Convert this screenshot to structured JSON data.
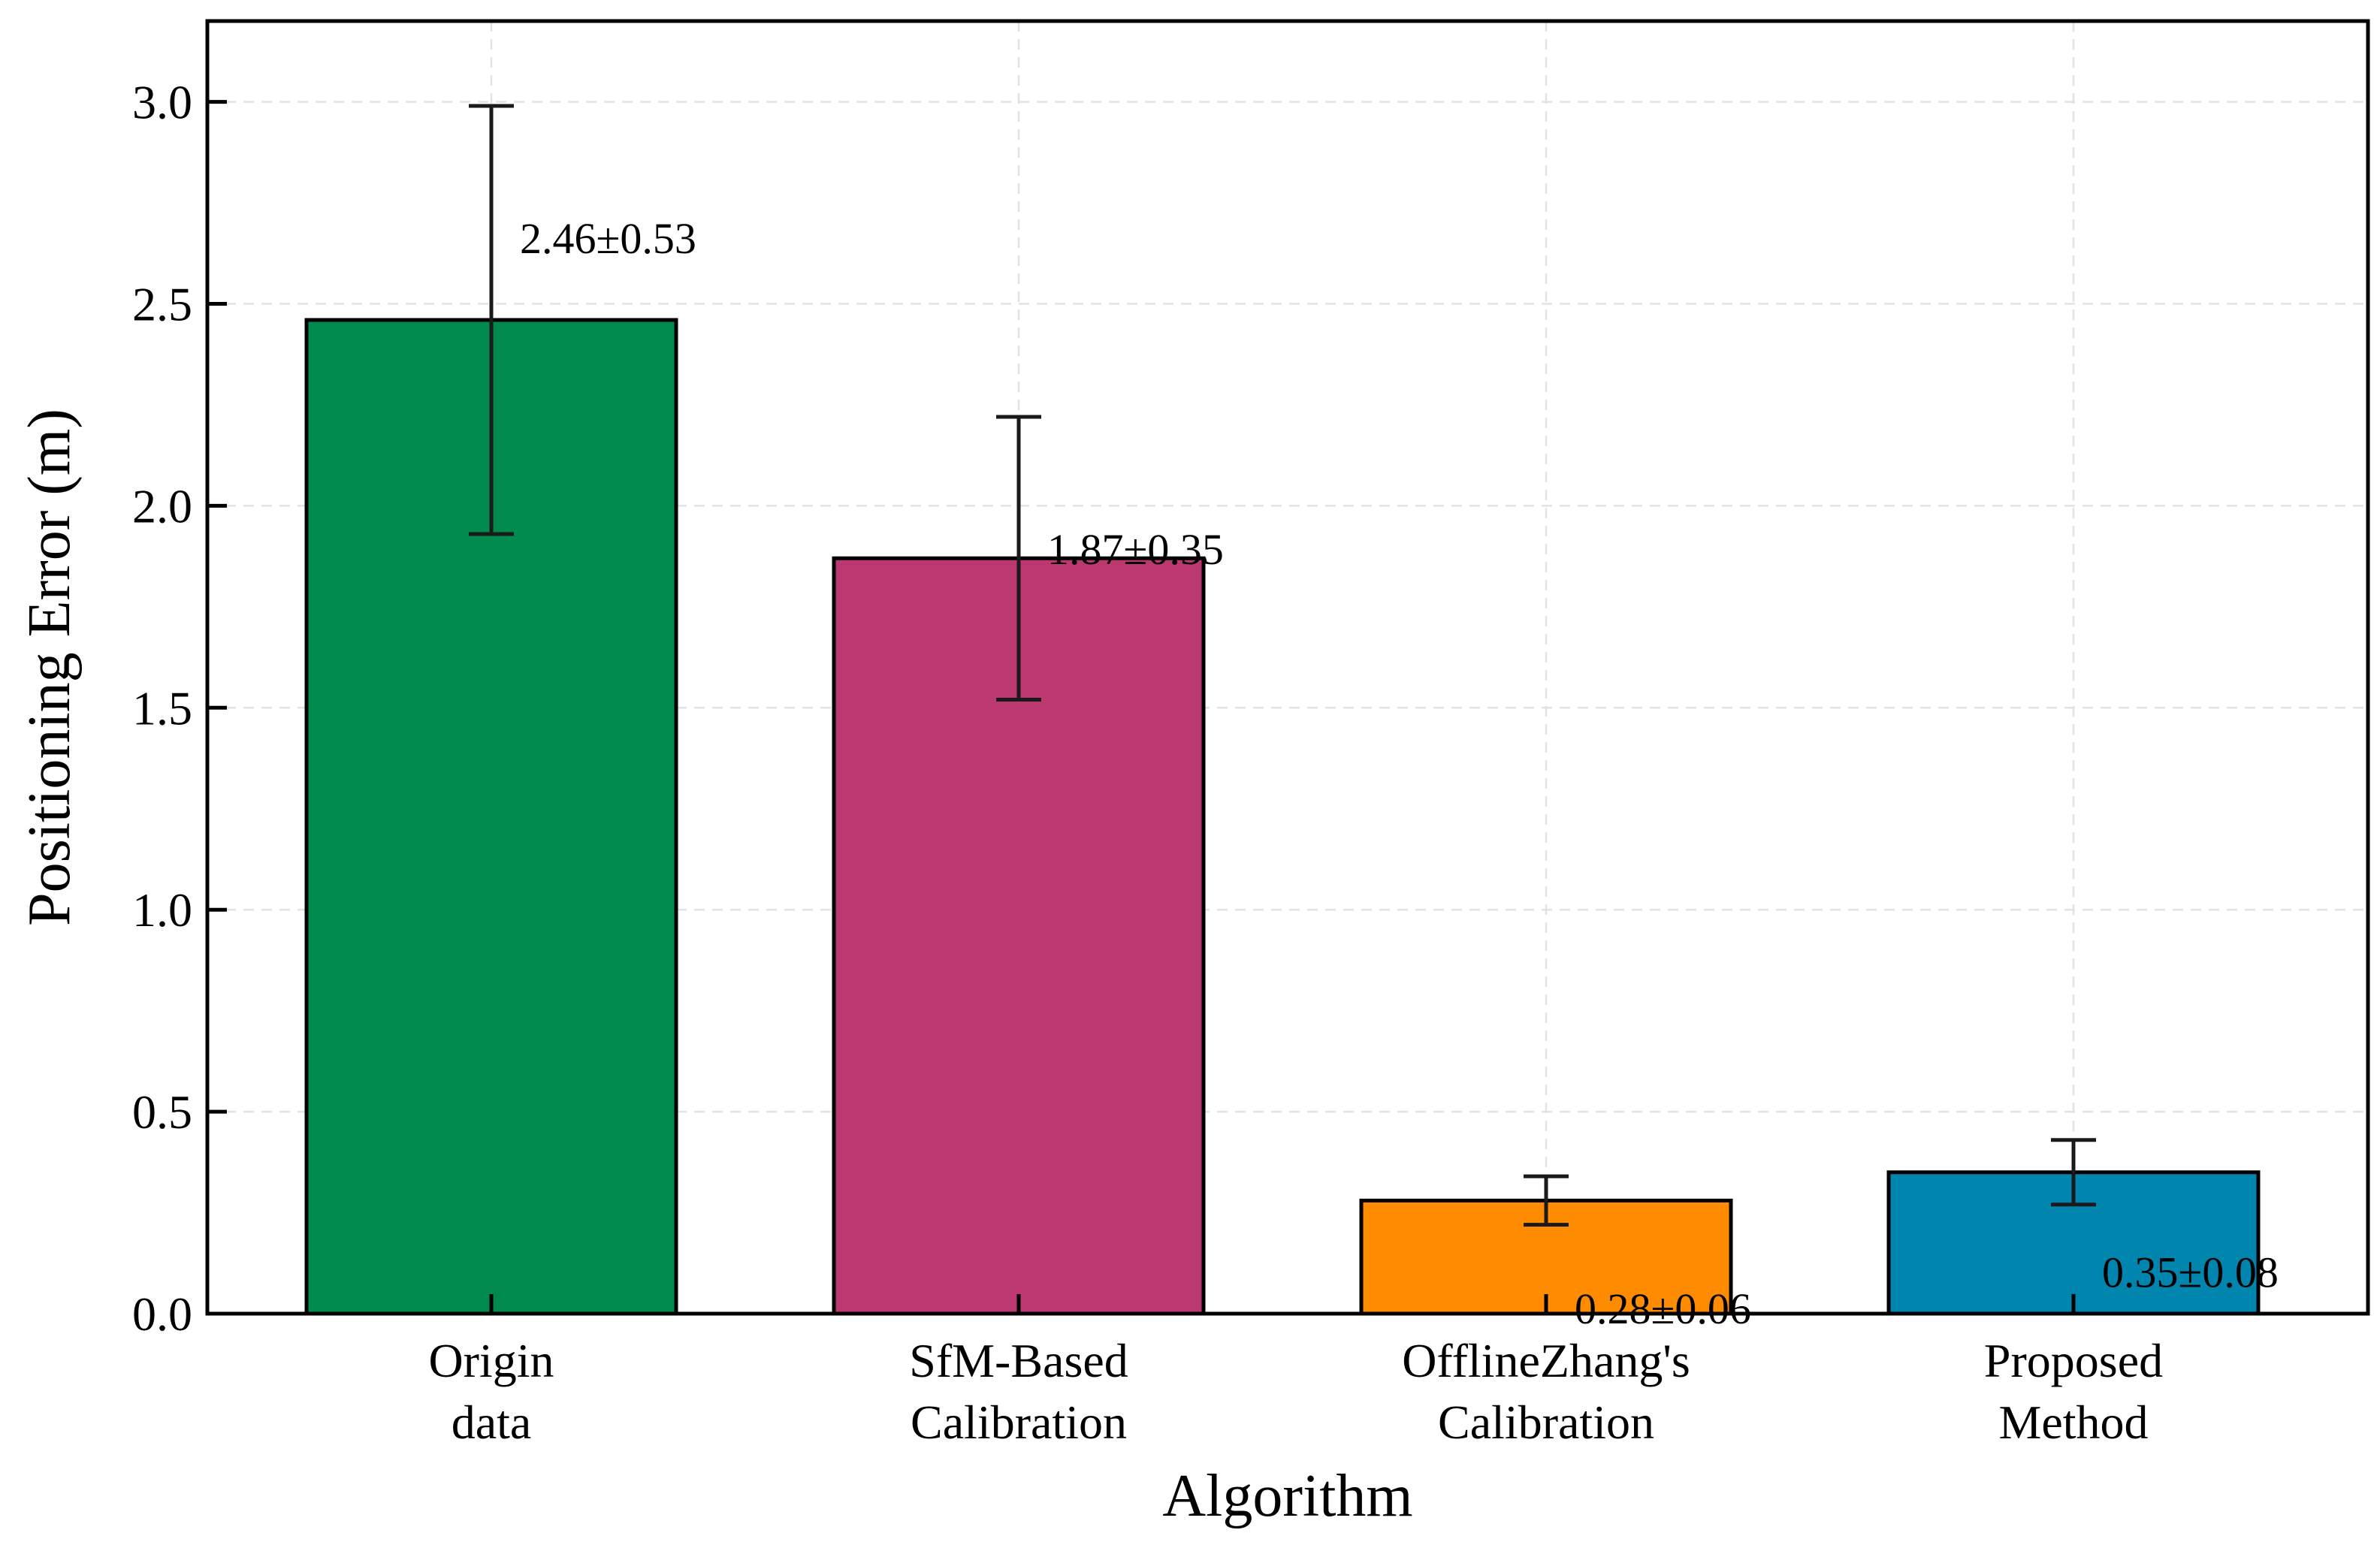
{
  "chart_data": {
    "type": "bar",
    "title": "",
    "xlabel": "Algorithm",
    "ylabel": "Positioning Error (m)",
    "ylim": [
      0,
      3.2
    ],
    "yticks": [
      "0.0",
      "0.5",
      "1.0",
      "1.5",
      "2.0",
      "2.5",
      "3.0"
    ],
    "ytick_values": [
      0,
      0.5,
      1.0,
      1.5,
      2.0,
      2.5,
      3.0
    ],
    "categories": [
      [
        "Origin",
        "data"
      ],
      [
        "SfM-Based",
        "Calibration"
      ],
      [
        "OfflineZhang's",
        "Calibration"
      ],
      [
        "Proposed",
        "Method"
      ]
    ],
    "values": [
      2.46,
      1.87,
      0.28,
      0.35
    ],
    "errors": [
      0.53,
      0.35,
      0.06,
      0.08
    ],
    "labels": [
      "2.46±0.53",
      "1.87±0.35",
      "0.28±0.06",
      "0.35±0.08"
    ],
    "colors": [
      "#008a4e",
      "#bb3870",
      "#ff8c00",
      "#0085ae"
    ],
    "grid": true,
    "legend": "none"
  }
}
